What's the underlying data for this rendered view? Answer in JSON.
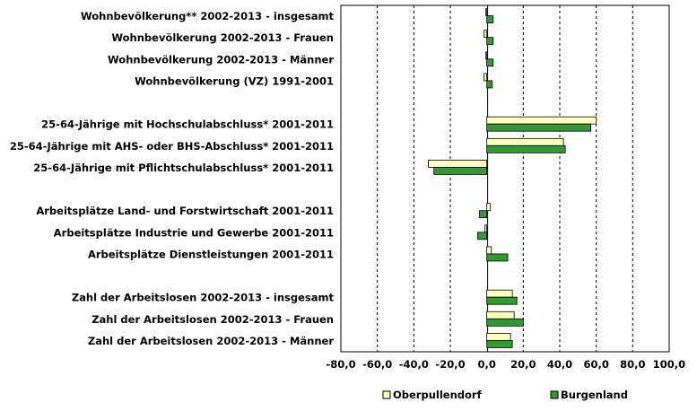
{
  "chart_data": {
    "type": "bar",
    "orientation": "horizontal",
    "categories": [
      "Wohnbevölkerung** 2002-2013 - insgesamt",
      "Wohnbevölkerung 2002-2013 - Frauen",
      "Wohnbevölkerung 2002-2013 - Männer",
      "Wohnbevölkerung (VZ) 1991-2001",
      "",
      "25-64-Jährige mit Hochschulabschluss* 2001-2011",
      "25-64-Jährige mit AHS- oder BHS-Abschluss* 2001-2011",
      "25-64-Jährige mit Pflichtschulabschluss* 2001-2011",
      "",
      "Arbeitsplätze Land- und Forstwirtschaft 2001-2011",
      "Arbeitsplätze Industrie und Gewerbe 2001-2011",
      "Arbeitsplätze Dienstleistungen 2001-2011",
      "",
      "Zahl der Arbeitslosen 2002-2013 - insgesamt",
      "Zahl der Arbeitslosen 2002-2013 - Frauen",
      "Zahl der Arbeitslosen 2002-2013 - Männer"
    ],
    "series": [
      {
        "name": "Oberpullendorf",
        "color": "#ffffc0",
        "values": [
          -0.5,
          -1.5,
          -0.5,
          -1.5,
          null,
          60.0,
          42.0,
          -32.0,
          null,
          2.0,
          -1.0,
          2.5,
          null,
          14.0,
          15.0,
          13.0
        ]
      },
      {
        "name": "Burgenland",
        "color": "#339933",
        "values": [
          3.5,
          3.5,
          3.5,
          3.0,
          null,
          57.0,
          43.0,
          -29.0,
          null,
          -4.0,
          -5.0,
          11.5,
          null,
          16.5,
          20.0,
          14.0
        ]
      }
    ],
    "xlim": [
      -80,
      100
    ],
    "xticks": [
      "-80,0",
      "-60,0",
      "-40,0",
      "-20,0",
      "0,0",
      "20,0",
      "40,0",
      "60,0",
      "80,0",
      "100,0"
    ],
    "grid": "vertical dashed",
    "legend": "bottom"
  }
}
